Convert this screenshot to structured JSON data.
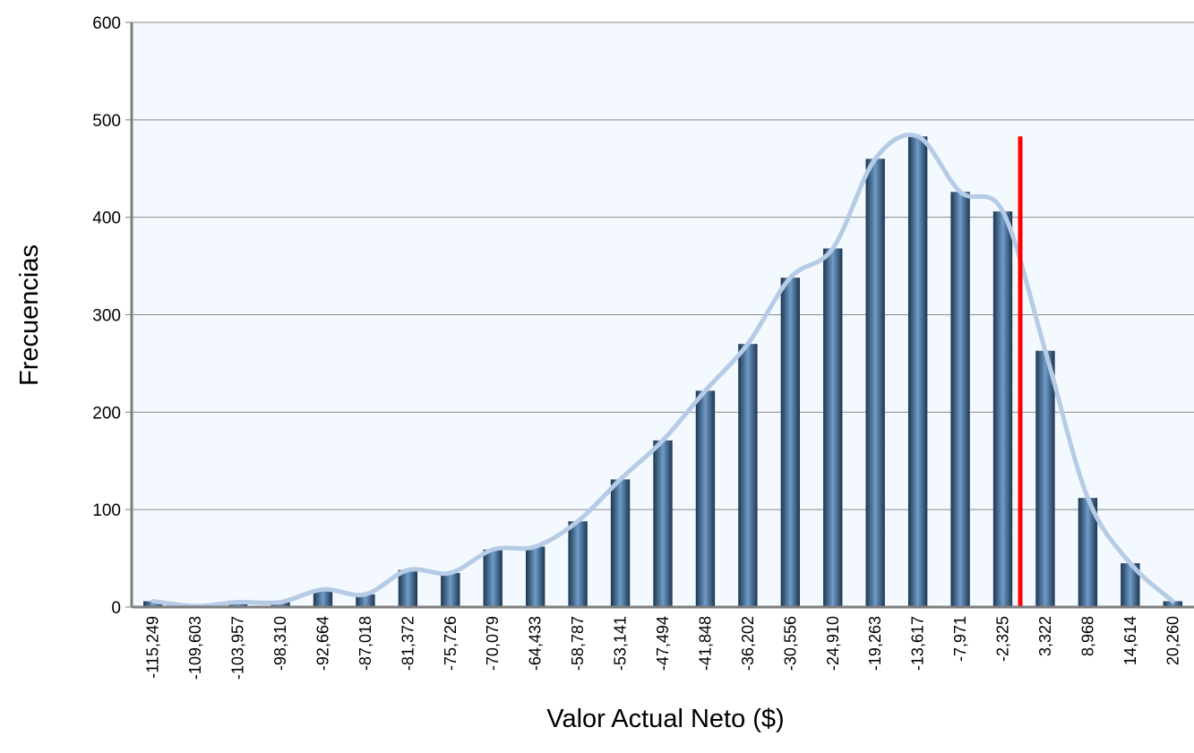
{
  "chart_data": {
    "type": "bar",
    "title": "",
    "xlabel": "Valor Actual Neto ($)",
    "ylabel": "Frecuencias",
    "ylim": [
      0,
      600
    ],
    "yticks": [
      0,
      100,
      200,
      300,
      400,
      500,
      600
    ],
    "grid": true,
    "legend": "none",
    "categories": [
      "-115,249",
      "-109,603",
      "-103,957",
      "-98,310",
      "-92,664",
      "-87,018",
      "-81,372",
      "-75,726",
      "-70,079",
      "-64,433",
      "-58,787",
      "-53,141",
      "-47,494",
      "-41,848",
      "-36,202",
      "-30,556",
      "-24,910",
      "-19,263",
      "-13,617",
      "-7,971",
      "-2,325",
      "3,322",
      "8,968",
      "14,614",
      "20,260"
    ],
    "series": [
      {
        "type": "bar",
        "values": [
          6,
          1,
          5,
          5,
          18,
          13,
          38,
          35,
          59,
          62,
          88,
          131,
          171,
          222,
          270,
          338,
          368,
          460,
          483,
          426,
          406,
          263,
          112,
          45,
          6
        ]
      },
      {
        "type": "smoothed-line",
        "values": [
          6,
          1,
          5,
          5,
          18,
          13,
          38,
          35,
          59,
          62,
          88,
          131,
          171,
          222,
          270,
          338,
          368,
          460,
          483,
          426,
          406,
          263,
          112,
          45,
          6
        ]
      }
    ],
    "reference_line": {
      "x": 0,
      "y_top": 483,
      "color": "#ff0000"
    },
    "colors": {
      "bar_dark": "#1c3650",
      "bar_light": "#6f9cc8",
      "curve": "#b5cbe6",
      "plot_bg": "#f3f9fe",
      "grid": "#8c8c8c",
      "reference": "#ff0000"
    }
  }
}
